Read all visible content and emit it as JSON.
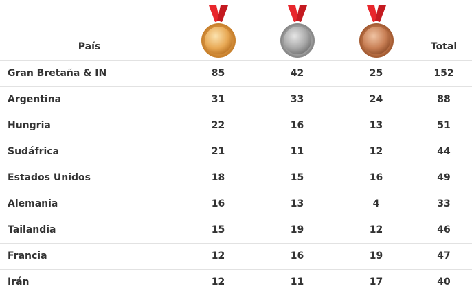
{
  "table": {
    "header": {
      "country": "País",
      "total": "Total"
    },
    "rows": [
      [
        "Gran Bretaña & IN",
        85,
        42,
        25,
        152
      ],
      [
        "Argentina",
        31,
        33,
        24,
        88
      ],
      [
        "Hungria",
        22,
        16,
        13,
        51
      ],
      [
        "Sudáfrica",
        21,
        11,
        12,
        44
      ],
      [
        "Estados Unidos",
        18,
        15,
        16,
        49
      ],
      [
        "Alemania",
        16,
        13,
        4,
        33
      ],
      [
        "Tailandia",
        15,
        19,
        12,
        46
      ],
      [
        "Francia",
        12,
        16,
        19,
        47
      ],
      [
        "Irán",
        12,
        11,
        17,
        40
      ]
    ]
  }
}
